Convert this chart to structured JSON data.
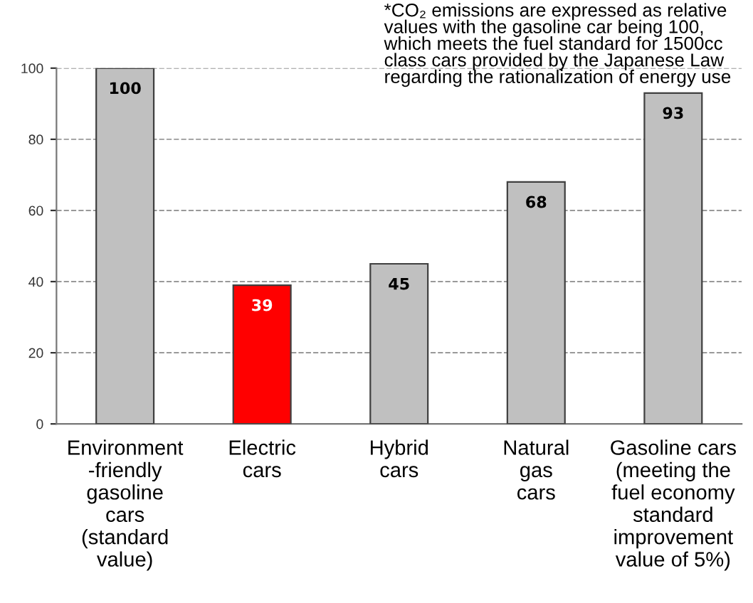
{
  "chart_data": {
    "type": "bar",
    "categories": [
      "Environment\n-friendly\ngasoline\ncars\n(standard\nvalue)",
      "Electric\ncars",
      "Hybrid\ncars",
      "Natural\ngas\ncars",
      "Gasoline cars\n(meeting the\nfuel economy\nstandard\nimprovement\nvalue of 5%)"
    ],
    "values": [
      100,
      39,
      45,
      68,
      93
    ],
    "colors": [
      "#c0c0c0",
      "#ff0000",
      "#c0c0c0",
      "#c0c0c0",
      "#c0c0c0"
    ],
    "data_labels": true,
    "ylim": [
      0,
      100
    ],
    "yticks": [
      0,
      20,
      40,
      60,
      80,
      100
    ],
    "grid": "y",
    "legend": false,
    "annotations": [
      "*CO₂ emissions are expressed as relative\nvalues with the gasoline car being 100,\nwhich meets the fuel standard for 1500cc\nclass cars provided by the Japanese Law\nregarding the rationalization of energy use"
    ]
  }
}
